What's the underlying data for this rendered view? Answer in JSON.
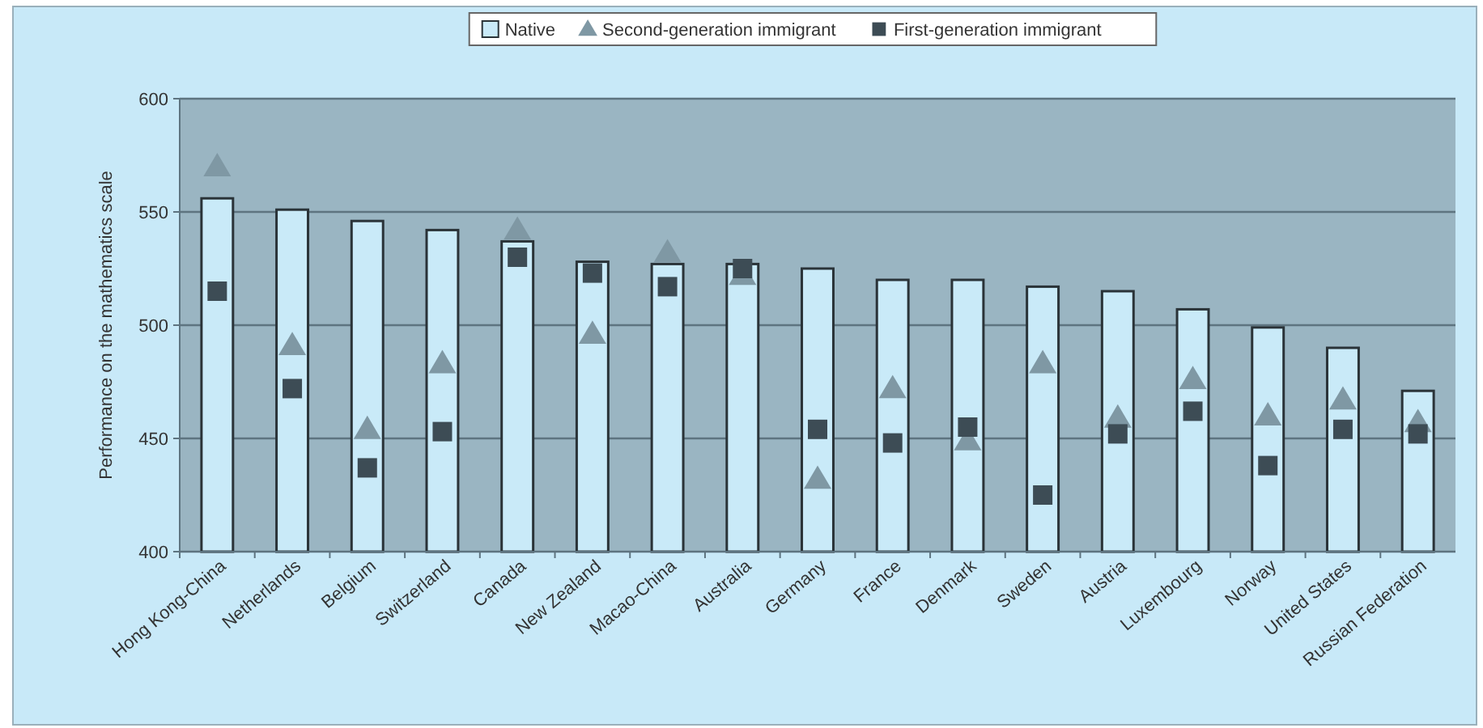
{
  "chart_data": {
    "type": "bar",
    "ylabel": "Performance on the mathematics scale",
    "categories": [
      "Hong Kong-China",
      "Netherlands",
      "Belgium",
      "Switzerland",
      "Canada",
      "New Zealand",
      "Macao-China",
      "Australia",
      "Germany",
      "France",
      "Denmark",
      "Sweden",
      "Austria",
      "Luxembourg",
      "Norway",
      "United States",
      "Russian Federation"
    ],
    "series": [
      {
        "name": "Native",
        "color": "#c9eaf8",
        "values": [
          556,
          551,
          546,
          542,
          537,
          528,
          527,
          527,
          525,
          520,
          520,
          517,
          515,
          507,
          499,
          490,
          471
        ]
      },
      {
        "name": "Second-generation immigrant",
        "type": "scatter",
        "marker": "triangle",
        "color": "#7f98a4",
        "values": [
          570,
          491,
          454,
          483,
          542,
          496,
          532,
          522,
          432,
          472,
          449,
          483,
          459,
          476,
          460,
          467,
          457
        ]
      },
      {
        "name": "First-generation immigrant",
        "type": "scatter",
        "marker": "square",
        "color": "#3d4c55",
        "values": [
          515,
          472,
          437,
          453,
          530,
          523,
          517,
          525,
          454,
          448,
          455,
          425,
          452,
          462,
          438,
          454,
          452
        ]
      }
    ],
    "ylim": [
      400,
      600
    ],
    "yticks": [
      400,
      450,
      500,
      550,
      600
    ],
    "grid": "y",
    "legend": "top"
  }
}
